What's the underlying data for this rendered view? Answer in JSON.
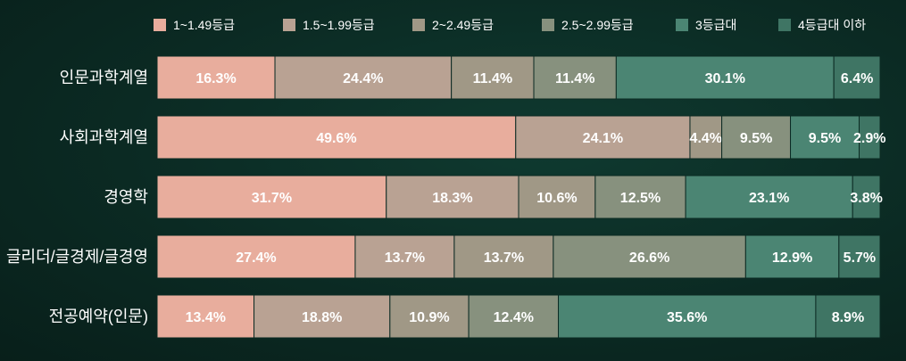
{
  "chart_data": {
    "type": "bar",
    "orientation": "horizontal",
    "stacked": true,
    "normalized_to_100": true,
    "legend_position": "top",
    "categories": [
      "인문과학계열",
      "사회과학계열",
      "경영학",
      "글리더/글경제/글경영",
      "전공예약(인문)"
    ],
    "series": [
      {
        "name": "1~1.49등급",
        "color": "#e8ad9d",
        "values": [
          16.3,
          49.6,
          31.7,
          27.4,
          13.4
        ],
        "labels": [
          "16.3%",
          "49.6%",
          "31.7%",
          "27.4%",
          "13.4%"
        ]
      },
      {
        "name": "1.5~1.99등급",
        "color": "#b9a293",
        "values": [
          24.4,
          24.1,
          18.3,
          13.7,
          18.8
        ],
        "labels": [
          "24.4%",
          "24.1%",
          "18.3%",
          "13.7%",
          "18.8%"
        ]
      },
      {
        "name": "2~2.49등급",
        "color": "#a09886",
        "values": [
          11.4,
          4.4,
          10.6,
          13.7,
          10.9
        ],
        "labels": [
          "11.4%",
          "4.4%",
          "10.6%",
          "13.7%",
          "10.9%"
        ]
      },
      {
        "name": "2.5~2.99등급",
        "color": "#87917e",
        "values": [
          11.4,
          9.5,
          12.5,
          26.6,
          12.4
        ],
        "labels": [
          "11.4%",
          "9.5%",
          "12.5%",
          "26.6%",
          "12.4%"
        ]
      },
      {
        "name": "3등급대",
        "color": "#4b8573",
        "values": [
          30.1,
          9.5,
          23.1,
          12.9,
          35.6
        ],
        "labels": [
          "30.1%",
          "9.5%",
          "23.1%",
          "12.9%",
          "35.6%"
        ]
      },
      {
        "name": "4등급대 이하",
        "color": "#3f7564",
        "values": [
          6.4,
          2.9,
          3.8,
          5.7,
          8.9
        ],
        "labels": [
          "6.4%",
          "2.9%",
          "3.8%",
          "5.7%",
          "8.9%"
        ]
      }
    ],
    "xlim": [
      0,
      100
    ],
    "grid": false
  }
}
